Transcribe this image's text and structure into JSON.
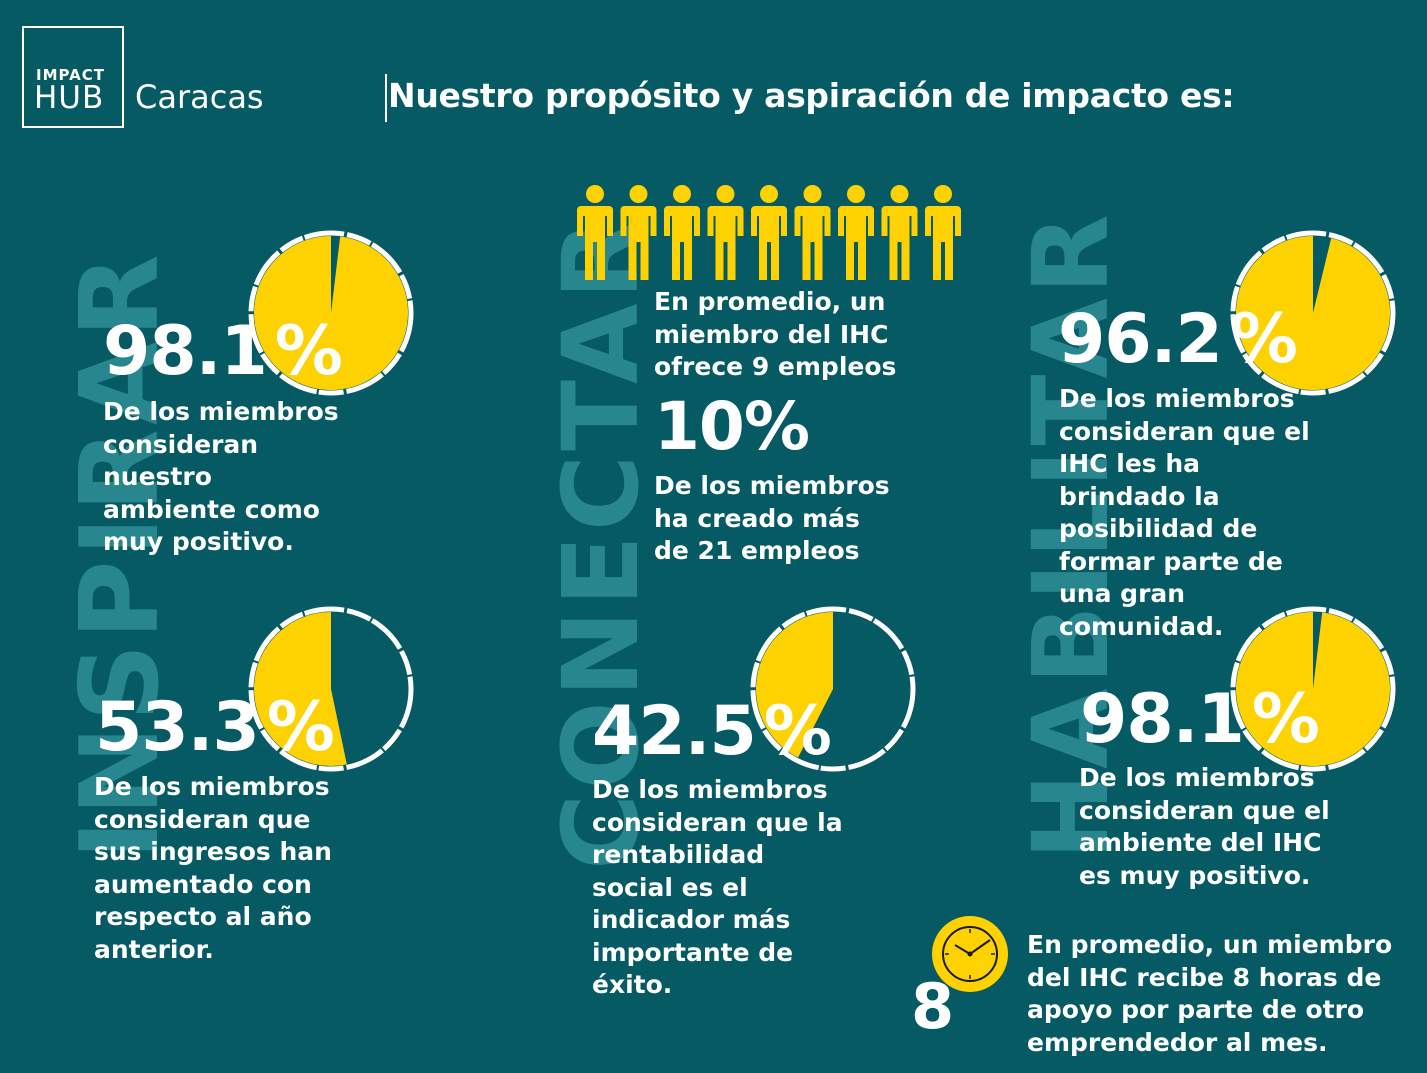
{
  "logo": {
    "line1": "IMPACT",
    "line2": "HUB",
    "city": "Caracas"
  },
  "title": "Nuestro propósito y aspiración de impacto es:",
  "watermarks": {
    "left": "INSPIRAR",
    "center": "CONECTAR",
    "right": "HABILITAR"
  },
  "colors": {
    "background": "#055a63",
    "accent": "#fed200",
    "text": "#ffffff",
    "watermark": "#2e8e96"
  },
  "stats": [
    {
      "value": "98.1",
      "unit": "%",
      "pie_fraction": 0.981,
      "lines": [
        "De los miembros",
        "consideran",
        "nuestro",
        "ambiente como",
        "muy positivo."
      ]
    },
    {
      "value": "53.3",
      "unit": "%",
      "pie_fraction": 0.533,
      "lines": [
        "De los miembros",
        "consideran que",
        "sus ingresos han",
        "aumentado con",
        "respecto al año",
        "anterior."
      ]
    },
    {
      "value": "42.5",
      "unit": "%",
      "pie_fraction": 0.425,
      "lines": [
        "De los miembros",
        "consideran que la",
        "rentabilidad",
        "social es el",
        "indicador más",
        "importante de",
        "éxito."
      ]
    },
    {
      "value": "96.2",
      "unit": "%",
      "pie_fraction": 0.962,
      "lines": [
        "De los miembros",
        "consideran que el",
        "IHC les ha",
        "brindado la",
        "posibilidad de",
        "formar parte de",
        "una gran",
        "comunidad."
      ]
    },
    {
      "value": "98.1",
      "unit": "%",
      "pie_fraction": 0.981,
      "lines": [
        "De los miembros",
        "consideran que el",
        "ambiente del IHC",
        "es muy positivo."
      ]
    }
  ],
  "employees": {
    "icon": "person-icon",
    "count": 9,
    "lines": [
      "En promedio, un",
      "miembro del IHC",
      "ofrece 9 empleos"
    ]
  },
  "ten": {
    "value": "10%",
    "lines": [
      "De los miembros",
      "ha creado más",
      "de 21 empleos"
    ]
  },
  "hours": {
    "icon": "clock-icon",
    "value": "8",
    "lines": [
      "En promedio, un miembro",
      "del IHC recibe 8 horas de",
      "apoyo por parte de otro",
      "emprendedor al mes."
    ]
  }
}
